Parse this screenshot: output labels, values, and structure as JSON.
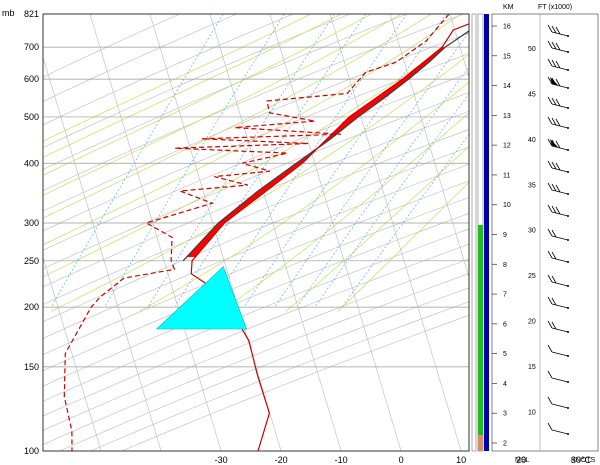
{
  "chart_data": {
    "type": "skew-t",
    "pressure_unit": "mb",
    "temp_unit": "°C",
    "pressure_levels": [
      100,
      150,
      200,
      250,
      300,
      400,
      500,
      600,
      700,
      821
    ],
    "pressure_labels": [
      "100",
      "150",
      "200",
      "250",
      "300",
      "400",
      "500",
      "600",
      "700",
      "821"
    ],
    "temp_ticks": [
      -30,
      -20,
      -10,
      0,
      10,
      20,
      30
    ],
    "temp_labels": [
      "-30",
      "-20",
      "-10",
      "0",
      "10",
      "20",
      "30°C"
    ],
    "temperature": {
      "name": "temperature",
      "color": "#cc0000",
      "points": [
        {
          "p": 821,
          "t": 15.5
        },
        {
          "p": 760,
          "t": 9.5
        },
        {
          "p": 700,
          "t": 8.5
        },
        {
          "p": 600,
          "t": 3.5
        },
        {
          "p": 500,
          "t": -3.5
        },
        {
          "p": 400,
          "t": -9
        },
        {
          "p": 300,
          "t": -19
        },
        {
          "p": 250,
          "t": -22.5
        },
        {
          "p": 235,
          "t": -22
        },
        {
          "p": 215,
          "t": -16.5
        },
        {
          "p": 200,
          "t": -14
        },
        {
          "p": 170,
          "t": -9
        },
        {
          "p": 145,
          "t": -6
        },
        {
          "p": 120,
          "t": -2
        },
        {
          "p": 100,
          "t": -2
        }
      ]
    },
    "dewpoint": {
      "name": "dewpoint",
      "color": "#cc0000",
      "points": [
        {
          "p": 821,
          "t": 8
        },
        {
          "p": 720,
          "t": 5.5
        },
        {
          "p": 650,
          "t": 1.5
        },
        {
          "p": 620,
          "t": -3
        },
        {
          "p": 560,
          "t": -5
        },
        {
          "p": 540,
          "t": -18
        },
        {
          "p": 510,
          "t": -17
        },
        {
          "p": 490,
          "t": -9
        },
        {
          "p": 475,
          "t": -22
        },
        {
          "p": 460,
          "t": -4
        },
        {
          "p": 450,
          "t": -27
        },
        {
          "p": 440,
          "t": -9
        },
        {
          "p": 430,
          "t": -31
        },
        {
          "p": 420,
          "t": -12
        },
        {
          "p": 400,
          "t": -19
        },
        {
          "p": 385,
          "t": -14
        },
        {
          "p": 375,
          "t": -23
        },
        {
          "p": 360,
          "t": -17
        },
        {
          "p": 350,
          "t": -28
        },
        {
          "p": 330,
          "t": -22
        },
        {
          "p": 300,
          "t": -32
        },
        {
          "p": 280,
          "t": -27
        },
        {
          "p": 250,
          "t": -26
        },
        {
          "p": 240,
          "t": -25
        },
        {
          "p": 230,
          "t": -33
        },
        {
          "p": 210,
          "t": -36
        },
        {
          "p": 200,
          "t": -37
        },
        {
          "p": 160,
          "t": -39
        },
        {
          "p": 130,
          "t": -37
        },
        {
          "p": 110,
          "t": -34
        },
        {
          "p": 100,
          "t": -33
        }
      ]
    },
    "parcel": {
      "name": "parcel",
      "color": "#404040",
      "points": [
        {
          "p": 821,
          "t": 15.5
        },
        {
          "p": 700,
          "t": 9
        },
        {
          "p": 650,
          "t": 7
        },
        {
          "p": 600,
          "t": 4.5
        },
        {
          "p": 550,
          "t": 1.5
        },
        {
          "p": 500,
          "t": -2
        },
        {
          "p": 450,
          "t": -5.5
        },
        {
          "p": 400,
          "t": -10
        },
        {
          "p": 350,
          "t": -15
        },
        {
          "p": 300,
          "t": -20
        },
        {
          "p": 250,
          "t": -24
        }
      ]
    },
    "cape_color": "#ff0000",
    "anvil": {
      "color": "#00ffff",
      "top_p": 180,
      "bottom_p": 243,
      "top_left_t": -25,
      "top_right_t": -10,
      "bottom_t": -17
    },
    "dry_adiabat_color": "#bbbbbb",
    "moist_adiabat_color": "#c8dd66",
    "mixing_ratio_color": "#44aadd",
    "height_axis": {
      "label_km": "KM",
      "label_ft": "FT (x1000)",
      "km_ticks": [
        "2",
        "3",
        "4",
        "5",
        "6",
        "7",
        "8",
        "9",
        "10",
        "11",
        "12",
        "13",
        "14",
        "15",
        "16"
      ],
      "ft_ticks": [
        "10",
        "15",
        "20",
        "25",
        "30",
        "35",
        "40",
        "45",
        "50"
      ],
      "bottom_left": "MSL",
      "bottom_right": "KNOTS"
    }
  }
}
